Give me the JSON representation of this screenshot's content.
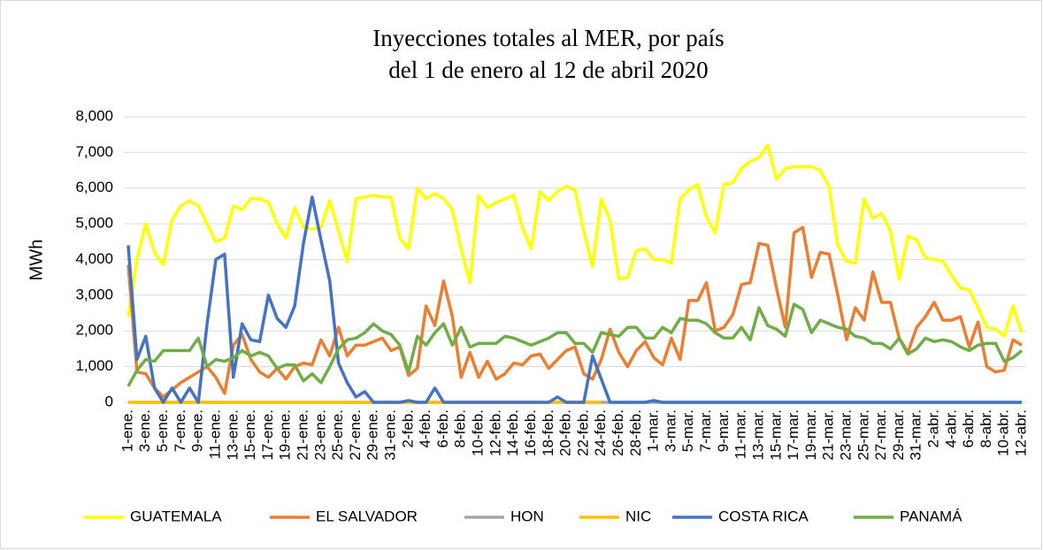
{
  "chart_data": {
    "type": "line",
    "title": "Inyecciones totales al MER, por país",
    "subtitle": "del 1 de enero al 12 de abril 2020",
    "y_label": "MWh",
    "categories": [
      "1-ene.",
      null,
      "3-ene.",
      null,
      "5-ene.",
      null,
      "7-ene.",
      null,
      "9-ene.",
      null,
      "11-ene.",
      null,
      "13-ene.",
      null,
      "15-ene.",
      null,
      "17-ene.",
      null,
      "19-ene.",
      null,
      "21-ene.",
      null,
      "23-ene.",
      null,
      "25-ene.",
      null,
      "27-ene.",
      null,
      "29-ene.",
      null,
      "31-ene.",
      null,
      "2-feb.",
      null,
      "4-feb.",
      null,
      "6-feb.",
      null,
      "8-feb.",
      null,
      "10-feb.",
      null,
      "12-feb.",
      null,
      "14-feb.",
      null,
      "16-feb.",
      null,
      "18-feb.",
      null,
      "20-feb.",
      null,
      "22-feb.",
      null,
      "24-feb.",
      null,
      "26-feb.",
      null,
      "28-feb.",
      null,
      "1-mar.",
      null,
      "3-mar.",
      null,
      "5-mar.",
      null,
      "7-mar.",
      null,
      "9-mar.",
      null,
      "11-mar.",
      null,
      "13-mar.",
      null,
      "15-mar.",
      null,
      "17-mar.",
      null,
      "19-mar.",
      null,
      "21-mar.",
      null,
      "23-mar.",
      null,
      "25-mar.",
      null,
      "27-mar.",
      null,
      "29-mar.",
      null,
      "31-mar.",
      null,
      "2-abr.",
      null,
      "4-abr.",
      null,
      "6-abr.",
      null,
      "8-abr.",
      null,
      "10-abr.",
      null,
      "12-abr."
    ],
    "ylim": [
      0,
      8000
    ],
    "yticks": [
      0,
      {
        "value": 1000,
        "label": "1,000"
      },
      {
        "value": 2000,
        "label": "2,000"
      },
      {
        "value": 3000,
        "label": "3,000"
      },
      {
        "value": 4000,
        "label": "4,000"
      },
      {
        "value": 5000,
        "label": "5,000"
      },
      {
        "value": 6000,
        "label": "6,000"
      },
      {
        "value": 7000,
        "label": "7,000"
      },
      {
        "value": 8000,
        "label": "8,000"
      }
    ],
    "grid": true,
    "legend": "bottom",
    "series": [
      {
        "name": "GUATEMALA",
        "color": "#ffff00",
        "values": [
          2400,
          4000,
          5000,
          4200,
          3850,
          5100,
          5500,
          5650,
          5500,
          5000,
          4500,
          4600,
          5500,
          5400,
          5700,
          5700,
          5600,
          5000,
          4600,
          5450,
          4900,
          4850,
          4900,
          5650,
          4800,
          3950,
          5700,
          5750,
          5800,
          5750,
          5750,
          4600,
          4300,
          6000,
          5700,
          5850,
          5700,
          5400,
          4300,
          3350,
          5800,
          5450,
          5600,
          5700,
          5800,
          4900,
          4300,
          5900,
          5650,
          5900,
          6050,
          5950,
          4800,
          3800,
          5700,
          5100,
          3450,
          3500,
          4250,
          4300,
          4000,
          4000,
          3900,
          5700,
          5950,
          6100,
          5200,
          4750,
          6100,
          6150,
          6550,
          6750,
          6850,
          7200,
          6250,
          6550,
          6600,
          6600,
          6600,
          6500,
          6050,
          4400,
          3950,
          3900,
          5700,
          5150,
          5300,
          4800,
          3450,
          4650,
          4550,
          4050,
          4000,
          3950,
          3550,
          3200,
          3150,
          2650,
          2100,
          2050,
          1850,
          2700,
          1950
        ]
      },
      {
        "name": "EL SALVADOR",
        "color": "#ed7d31",
        "values": [
          3850,
          850,
          800,
          400,
          150,
          350,
          550,
          700,
          850,
          1000,
          700,
          250,
          1600,
          1900,
          1200,
          850,
          700,
          950,
          650,
          1000,
          1100,
          1050,
          1750,
          1300,
          2100,
          1300,
          1600,
          1600,
          1700,
          1800,
          1450,
          1550,
          750,
          950,
          2700,
          2150,
          3400,
          2400,
          700,
          1400,
          700,
          1150,
          650,
          800,
          1100,
          1050,
          1300,
          1350,
          950,
          1200,
          1450,
          1550,
          800,
          650,
          1200,
          2050,
          1400,
          1000,
          1450,
          1700,
          1250,
          1050,
          1800,
          1200,
          2850,
          2850,
          3350,
          2000,
          2100,
          2450,
          3300,
          3350,
          4450,
          4400,
          3200,
          2100,
          4750,
          4900,
          3500,
          4200,
          4150,
          3000,
          1750,
          2650,
          2300,
          3650,
          2800,
          2800,
          1800,
          1400,
          2100,
          2400,
          2800,
          2300,
          2300,
          2400,
          1550,
          2250,
          1000,
          850,
          900,
          1750,
          1600
        ]
      },
      {
        "name": "HON",
        "color": "#a5a5a5",
        "values": [
          0,
          0,
          0,
          0,
          0,
          0,
          0,
          0,
          0,
          0,
          0,
          0,
          0,
          0,
          0,
          0,
          0,
          0,
          0,
          0,
          0,
          0,
          0,
          0,
          0,
          0,
          0,
          0,
          0,
          0,
          0,
          0,
          0,
          0,
          0,
          0,
          0,
          0,
          0,
          0,
          0,
          0,
          0,
          0,
          0,
          0,
          0,
          0,
          0,
          0,
          0,
          0,
          0,
          0,
          0,
          0,
          0,
          0,
          0,
          0,
          0,
          0,
          0,
          0,
          0,
          0,
          0,
          0,
          0,
          0,
          0,
          0,
          0,
          0,
          0,
          0,
          0,
          0,
          0,
          0,
          0,
          0,
          0,
          0,
          0,
          0,
          0,
          0,
          0,
          0,
          0,
          0,
          0,
          0,
          0,
          0,
          0,
          0,
          0,
          0,
          0,
          0,
          0
        ]
      },
      {
        "name": "NIC",
        "color": "#ffc000",
        "values": [
          0,
          0,
          0,
          0,
          0,
          0,
          0,
          0,
          0,
          0,
          0,
          0,
          0,
          0,
          0,
          0,
          0,
          0,
          0,
          0,
          0,
          0,
          0,
          0,
          0,
          0,
          0,
          0,
          0,
          0,
          0,
          0,
          0,
          0,
          0,
          0,
          0,
          0,
          0,
          0,
          0,
          0,
          0,
          0,
          0,
          0,
          0,
          0,
          0,
          0,
          0,
          0,
          0,
          0,
          0,
          null,
          null,
          null,
          null,
          null,
          null,
          null,
          null,
          null,
          null,
          null,
          null,
          null,
          null,
          null,
          null,
          null,
          null,
          null,
          null,
          null,
          null,
          null,
          null,
          null,
          null,
          null,
          null,
          null,
          null,
          null,
          null,
          null,
          null,
          null,
          null,
          null,
          null,
          null,
          null,
          null,
          null,
          null,
          null,
          null,
          null,
          null,
          null
        ]
      },
      {
        "name": "COSTA RICA",
        "color": "#4472c4",
        "values": [
          4400,
          1200,
          1850,
          400,
          0,
          400,
          0,
          400,
          0,
          2200,
          4000,
          4150,
          700,
          2200,
          1750,
          1700,
          3000,
          2350,
          2100,
          2700,
          4450,
          5750,
          4550,
          3400,
          1100,
          550,
          150,
          300,
          0,
          0,
          0,
          0,
          50,
          0,
          0,
          400,
          0,
          0,
          0,
          0,
          0,
          0,
          0,
          0,
          0,
          0,
          0,
          0,
          0,
          150,
          0,
          0,
          0,
          1300,
          650,
          0,
          0,
          0,
          0,
          0,
          50,
          0,
          0,
          0,
          0,
          0,
          0,
          0,
          0,
          0,
          0,
          0,
          0,
          0,
          0,
          0,
          0,
          0,
          0,
          0,
          0,
          0,
          0,
          0,
          0,
          0,
          0,
          0,
          0,
          0,
          0,
          0,
          0,
          0,
          0,
          0,
          0,
          0,
          0,
          0,
          0,
          0,
          0
        ]
      },
      {
        "name": "PANAMÁ",
        "color": "#70ad47",
        "values": [
          450,
          900,
          1200,
          1150,
          1450,
          1450,
          1450,
          1450,
          1800,
          1000,
          1200,
          1150,
          1250,
          1450,
          1300,
          1400,
          1300,
          950,
          1050,
          1050,
          600,
          800,
          550,
          1000,
          1500,
          1750,
          1800,
          1950,
          2200,
          2000,
          1900,
          1600,
          850,
          1850,
          1600,
          1950,
          2200,
          1600,
          2100,
          1550,
          1650,
          1650,
          1650,
          1850,
          1800,
          1700,
          1600,
          1700,
          1800,
          1950,
          1950,
          1650,
          1650,
          1400,
          1950,
          1900,
          1850,
          2100,
          2100,
          1800,
          1800,
          2100,
          1950,
          2350,
          2300,
          2300,
          2200,
          1950,
          1800,
          1800,
          2100,
          1750,
          2650,
          2150,
          2050,
          1850,
          2750,
          2600,
          1950,
          2300,
          2200,
          2100,
          2050,
          1850,
          1800,
          1650,
          1650,
          1500,
          1800,
          1350,
          1500,
          1800,
          1700,
          1750,
          1700,
          1550,
          1450,
          1600,
          1650,
          1650,
          1150,
          1250,
          1450
        ]
      }
    ]
  }
}
